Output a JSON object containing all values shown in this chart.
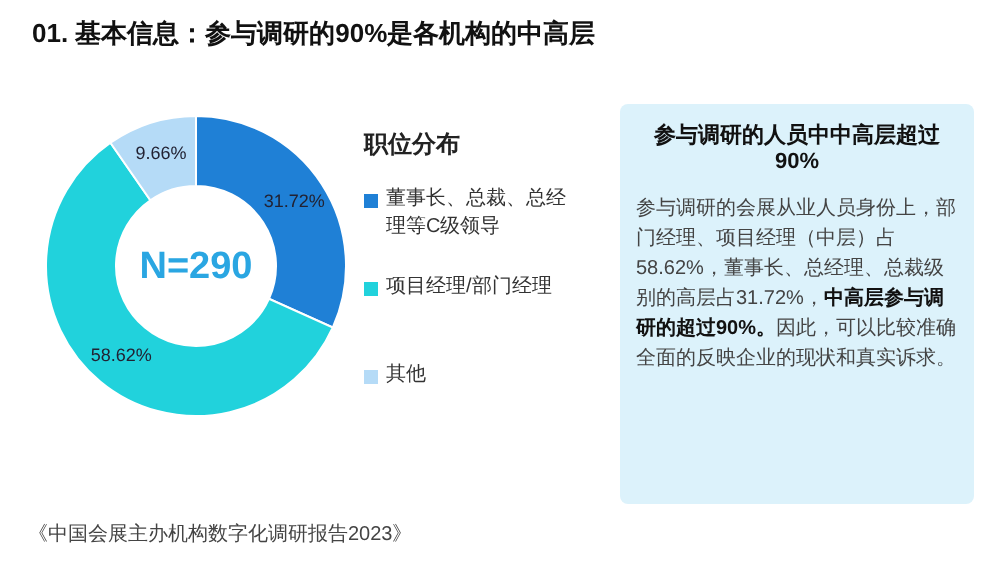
{
  "chart_data": [
    {
      "type": "donut",
      "title": "01. 基本信息：参与调研的90%是各机构的中高层",
      "legend_title": "职位分布",
      "legend": "right",
      "categories": [
        "董事长、总裁、总经理等C级领导",
        "项目经理/部门经理",
        "其他"
      ],
      "values": [
        31.72,
        58.62,
        9.66
      ],
      "value_labels": [
        "31.72%",
        "58.62%",
        "9.66%"
      ],
      "colors": [
        "#1f80d6",
        "#21d2dc",
        "#b5dbf7"
      ],
      "annotations": [
        "N=290",
        "《中国会展主办机构数字化调研报告2023》"
      ]
    },
    {
      "type": "other",
      "title": "参与调研的人员中中高层超过90%",
      "annotations": [
        "参与调研的会展从业人员身份上，部门经理、项目经理（中层）占58.62%，董事长、总经理、总裁级别的高层占31.72%，",
        "中高层参与调研的超过90%。",
        "因此，可以比较准确全面的反映企业的现状和真实诉求。"
      ]
    }
  ]
}
